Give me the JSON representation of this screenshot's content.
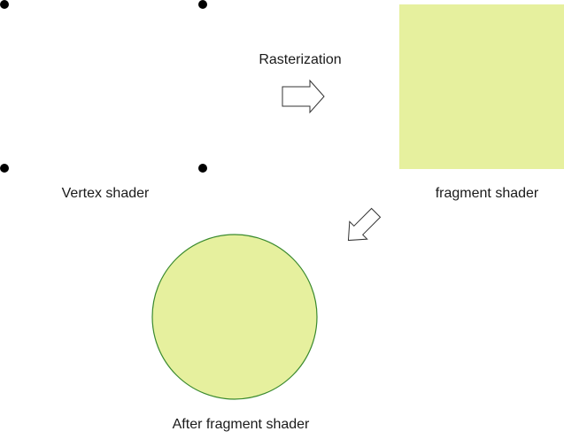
{
  "labels": {
    "vertex_shader": "Vertex shader",
    "rasterization": "Rasterization",
    "fragment_shader": "fragment shader",
    "after_fragment_shader": "After fragment shader"
  },
  "colors": {
    "fill": "#e6f09e",
    "circle_stroke": "#3a8a2e",
    "vertex_dot": "#000000",
    "arrow_stroke": "#333333",
    "arrow_fill": "#ffffff"
  }
}
